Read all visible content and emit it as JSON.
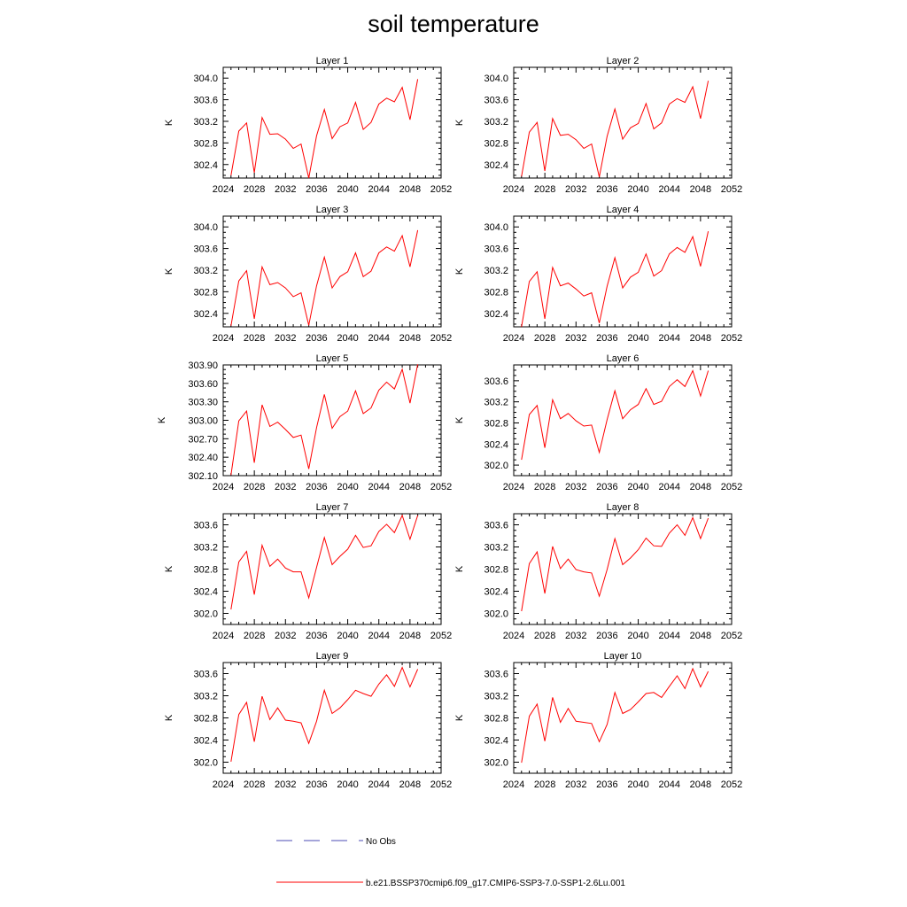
{
  "figure": {
    "title": "soil temperature"
  },
  "legend": {
    "items": [
      {
        "label": "No Obs",
        "color": "#4b4bb4",
        "style": "dashed"
      },
      {
        "label": "b.e21.BSSP370cmip6.f09_g17.CMIP6-SSP3-7.0-SSP1-2.6Lu.001",
        "color": "#ff0000",
        "style": "solid"
      }
    ]
  },
  "chart_data": [
    {
      "type": "line",
      "title": "Layer 1",
      "ylabel": "K",
      "xlim": [
        2024,
        2052
      ],
      "xticks": [
        2024,
        2028,
        2032,
        2036,
        2040,
        2044,
        2048,
        2052
      ],
      "ylim": [
        302.15,
        304.2
      ],
      "yticks": [
        "302.4",
        "302.8",
        "303.2",
        "303.6",
        "304.0"
      ],
      "series": [
        {
          "color": "#ff0000",
          "x": [
            2025,
            2026,
            2027,
            2028,
            2029,
            2030,
            2031,
            2032,
            2033,
            2034,
            2035,
            2036,
            2037,
            2038,
            2039,
            2040,
            2041,
            2042,
            2043,
            2044,
            2045,
            2046,
            2047,
            2048,
            2049
          ],
          "y": [
            302.2,
            303.02,
            303.17,
            302.25,
            303.27,
            302.96,
            302.97,
            302.87,
            302.7,
            302.78,
            302.15,
            302.93,
            303.42,
            302.88,
            303.1,
            303.17,
            303.55,
            303.05,
            303.18,
            303.52,
            303.63,
            303.56,
            303.83,
            303.23,
            303.98
          ]
        }
      ]
    },
    {
      "type": "line",
      "title": "Layer 2",
      "ylabel": "K",
      "xlim": [
        2024,
        2052
      ],
      "xticks": [
        2024,
        2028,
        2032,
        2036,
        2040,
        2044,
        2048,
        2052
      ],
      "ylim": [
        302.15,
        304.2
      ],
      "yticks": [
        "302.4",
        "302.8",
        "303.2",
        "303.6",
        "304.0"
      ],
      "series": [
        {
          "color": "#ff0000",
          "x": [
            2025,
            2026,
            2027,
            2028,
            2029,
            2030,
            2031,
            2032,
            2033,
            2034,
            2035,
            2036,
            2037,
            2038,
            2039,
            2040,
            2041,
            2042,
            2043,
            2044,
            2045,
            2046,
            2047,
            2048,
            2049
          ],
          "y": [
            302.18,
            303.0,
            303.18,
            302.28,
            303.25,
            302.94,
            302.96,
            302.86,
            302.7,
            302.78,
            302.17,
            302.92,
            303.43,
            302.87,
            303.08,
            303.16,
            303.53,
            303.06,
            303.17,
            303.52,
            303.62,
            303.55,
            303.84,
            303.25,
            303.95
          ]
        }
      ]
    },
    {
      "type": "line",
      "title": "Layer 3",
      "ylabel": "K",
      "xlim": [
        2024,
        2052
      ],
      "xticks": [
        2024,
        2028,
        2032,
        2036,
        2040,
        2044,
        2048,
        2052
      ],
      "ylim": [
        302.15,
        304.2
      ],
      "yticks": [
        "302.4",
        "302.8",
        "303.2",
        "303.6",
        "304.0"
      ],
      "series": [
        {
          "color": "#ff0000",
          "x": [
            2025,
            2026,
            2027,
            2028,
            2029,
            2030,
            2031,
            2032,
            2033,
            2034,
            2035,
            2036,
            2037,
            2038,
            2039,
            2040,
            2041,
            2042,
            2043,
            2044,
            2045,
            2046,
            2047,
            2048,
            2049
          ],
          "y": [
            302.17,
            303.0,
            303.19,
            302.3,
            303.26,
            302.93,
            302.97,
            302.87,
            302.71,
            302.78,
            302.18,
            302.91,
            303.44,
            302.87,
            303.08,
            303.17,
            303.52,
            303.08,
            303.18,
            303.52,
            303.63,
            303.55,
            303.84,
            303.26,
            303.94
          ]
        }
      ]
    },
    {
      "type": "line",
      "title": "Layer 4",
      "ylabel": "K",
      "xlim": [
        2024,
        2052
      ],
      "xticks": [
        2024,
        2028,
        2032,
        2036,
        2040,
        2044,
        2048,
        2052
      ],
      "ylim": [
        302.15,
        304.2
      ],
      "yticks": [
        "302.4",
        "302.8",
        "303.2",
        "303.6",
        "304.0"
      ],
      "series": [
        {
          "color": "#ff0000",
          "x": [
            2025,
            2026,
            2027,
            2028,
            2029,
            2030,
            2031,
            2032,
            2033,
            2034,
            2035,
            2036,
            2037,
            2038,
            2039,
            2040,
            2041,
            2042,
            2043,
            2044,
            2045,
            2046,
            2047,
            2048,
            2049
          ],
          "y": [
            302.15,
            302.99,
            303.17,
            302.3,
            303.25,
            302.91,
            302.96,
            302.85,
            302.72,
            302.78,
            302.22,
            302.9,
            303.43,
            302.87,
            303.07,
            303.16,
            303.5,
            303.09,
            303.19,
            303.5,
            303.62,
            303.53,
            303.82,
            303.27,
            303.92
          ]
        }
      ]
    },
    {
      "type": "line",
      "title": "Layer 5",
      "ylabel": "K",
      "xlim": [
        2024,
        2052
      ],
      "xticks": [
        2024,
        2028,
        2032,
        2036,
        2040,
        2044,
        2048,
        2052
      ],
      "ylim": [
        302.1,
        303.9
      ],
      "yticks": [
        "302.10",
        "302.40",
        "302.70",
        "303.00",
        "303.30",
        "303.60",
        "303.90"
      ],
      "series": [
        {
          "color": "#ff0000",
          "x": [
            2025,
            2026,
            2027,
            2028,
            2029,
            2030,
            2031,
            2032,
            2033,
            2034,
            2035,
            2036,
            2037,
            2038,
            2039,
            2040,
            2041,
            2042,
            2043,
            2044,
            2045,
            2046,
            2047,
            2048,
            2049
          ],
          "y": [
            302.11,
            302.99,
            303.15,
            302.31,
            303.25,
            302.9,
            302.97,
            302.85,
            302.72,
            302.76,
            302.21,
            302.88,
            303.42,
            302.87,
            303.06,
            303.15,
            303.48,
            303.11,
            303.2,
            303.49,
            303.62,
            303.51,
            303.83,
            303.28,
            303.91
          ]
        }
      ]
    },
    {
      "type": "line",
      "title": "Layer 6",
      "ylabel": "K",
      "xlim": [
        2024,
        2052
      ],
      "xticks": [
        2024,
        2028,
        2032,
        2036,
        2040,
        2044,
        2048,
        2052
      ],
      "ylim": [
        301.8,
        303.9
      ],
      "yticks": [
        "302.0",
        "302.4",
        "302.8",
        "303.2",
        "303.6"
      ],
      "series": [
        {
          "color": "#ff0000",
          "x": [
            2025,
            2026,
            2027,
            2028,
            2029,
            2030,
            2031,
            2032,
            2033,
            2034,
            2035,
            2036,
            2037,
            2038,
            2039,
            2040,
            2041,
            2042,
            2043,
            2044,
            2045,
            2046,
            2047,
            2048,
            2049
          ],
          "y": [
            302.1,
            302.96,
            303.13,
            302.33,
            303.24,
            302.88,
            302.98,
            302.84,
            302.74,
            302.76,
            302.24,
            302.86,
            303.41,
            302.88,
            303.05,
            303.15,
            303.45,
            303.15,
            303.21,
            303.49,
            303.62,
            303.49,
            303.79,
            303.31,
            303.79
          ]
        }
      ]
    },
    {
      "type": "line",
      "title": "Layer 7",
      "ylabel": "K",
      "xlim": [
        2024,
        2052
      ],
      "xticks": [
        2024,
        2028,
        2032,
        2036,
        2040,
        2044,
        2048,
        2052
      ],
      "ylim": [
        301.8,
        303.8
      ],
      "yticks": [
        "302.0",
        "302.4",
        "302.8",
        "303.2",
        "303.6"
      ],
      "series": [
        {
          "color": "#ff0000",
          "x": [
            2025,
            2026,
            2027,
            2028,
            2029,
            2030,
            2031,
            2032,
            2033,
            2034,
            2035,
            2036,
            2037,
            2038,
            2039,
            2040,
            2041,
            2042,
            2043,
            2044,
            2045,
            2046,
            2047,
            2048,
            2049
          ],
          "y": [
            302.07,
            302.93,
            303.12,
            302.34,
            303.23,
            302.85,
            302.98,
            302.82,
            302.75,
            302.75,
            302.28,
            302.83,
            303.37,
            302.88,
            303.03,
            303.16,
            303.41,
            303.19,
            303.22,
            303.48,
            303.61,
            303.46,
            303.77,
            303.34,
            303.77
          ]
        }
      ]
    },
    {
      "type": "line",
      "title": "Layer 8",
      "ylabel": "K",
      "xlim": [
        2024,
        2052
      ],
      "xticks": [
        2024,
        2028,
        2032,
        2036,
        2040,
        2044,
        2048,
        2052
      ],
      "ylim": [
        301.8,
        303.8
      ],
      "yticks": [
        "302.0",
        "302.4",
        "302.8",
        "303.2",
        "303.6"
      ],
      "series": [
        {
          "color": "#ff0000",
          "x": [
            2025,
            2026,
            2027,
            2028,
            2029,
            2030,
            2031,
            2032,
            2033,
            2034,
            2035,
            2036,
            2037,
            2038,
            2039,
            2040,
            2041,
            2042,
            2043,
            2044,
            2045,
            2046,
            2047,
            2048,
            2049
          ],
          "y": [
            302.04,
            302.9,
            303.11,
            302.36,
            303.21,
            302.81,
            302.98,
            302.79,
            302.75,
            302.73,
            302.31,
            302.79,
            303.35,
            302.88,
            303.0,
            303.15,
            303.36,
            303.22,
            303.21,
            303.45,
            303.6,
            303.41,
            303.73,
            303.35,
            303.72
          ]
        }
      ]
    },
    {
      "type": "line",
      "title": "Layer 9",
      "ylabel": "K",
      "xlim": [
        2024,
        2052
      ],
      "xticks": [
        2024,
        2028,
        2032,
        2036,
        2040,
        2044,
        2048,
        2052
      ],
      "ylim": [
        301.8,
        303.8
      ],
      "yticks": [
        "302.0",
        "302.4",
        "302.8",
        "303.2",
        "303.6"
      ],
      "series": [
        {
          "color": "#ff0000",
          "x": [
            2025,
            2026,
            2027,
            2028,
            2029,
            2030,
            2031,
            2032,
            2033,
            2034,
            2035,
            2036,
            2037,
            2038,
            2039,
            2040,
            2041,
            2042,
            2043,
            2044,
            2045,
            2046,
            2047,
            2048,
            2049
          ],
          "y": [
            302.01,
            302.86,
            303.08,
            302.37,
            303.19,
            302.77,
            302.98,
            302.76,
            302.74,
            302.71,
            302.34,
            302.74,
            303.3,
            302.88,
            302.98,
            303.13,
            303.3,
            303.24,
            303.19,
            303.41,
            303.58,
            303.37,
            303.71,
            303.36,
            303.68
          ]
        }
      ]
    },
    {
      "type": "line",
      "title": "Layer 10",
      "ylabel": "K",
      "xlim": [
        2024,
        2052
      ],
      "xticks": [
        2024,
        2028,
        2032,
        2036,
        2040,
        2044,
        2048,
        2052
      ],
      "ylim": [
        301.8,
        303.8
      ],
      "yticks": [
        "302.0",
        "302.4",
        "302.8",
        "303.2",
        "303.6"
      ],
      "series": [
        {
          "color": "#ff0000",
          "x": [
            2025,
            2026,
            2027,
            2028,
            2029,
            2030,
            2031,
            2032,
            2033,
            2034,
            2035,
            2036,
            2037,
            2038,
            2039,
            2040,
            2041,
            2042,
            2043,
            2044,
            2045,
            2046,
            2047,
            2048,
            2049
          ],
          "y": [
            301.99,
            302.83,
            303.05,
            302.38,
            303.17,
            302.72,
            302.97,
            302.74,
            302.72,
            302.7,
            302.37,
            302.68,
            303.26,
            302.88,
            302.95,
            303.09,
            303.24,
            303.26,
            303.17,
            303.37,
            303.56,
            303.33,
            303.69,
            303.36,
            303.64
          ]
        }
      ]
    }
  ]
}
